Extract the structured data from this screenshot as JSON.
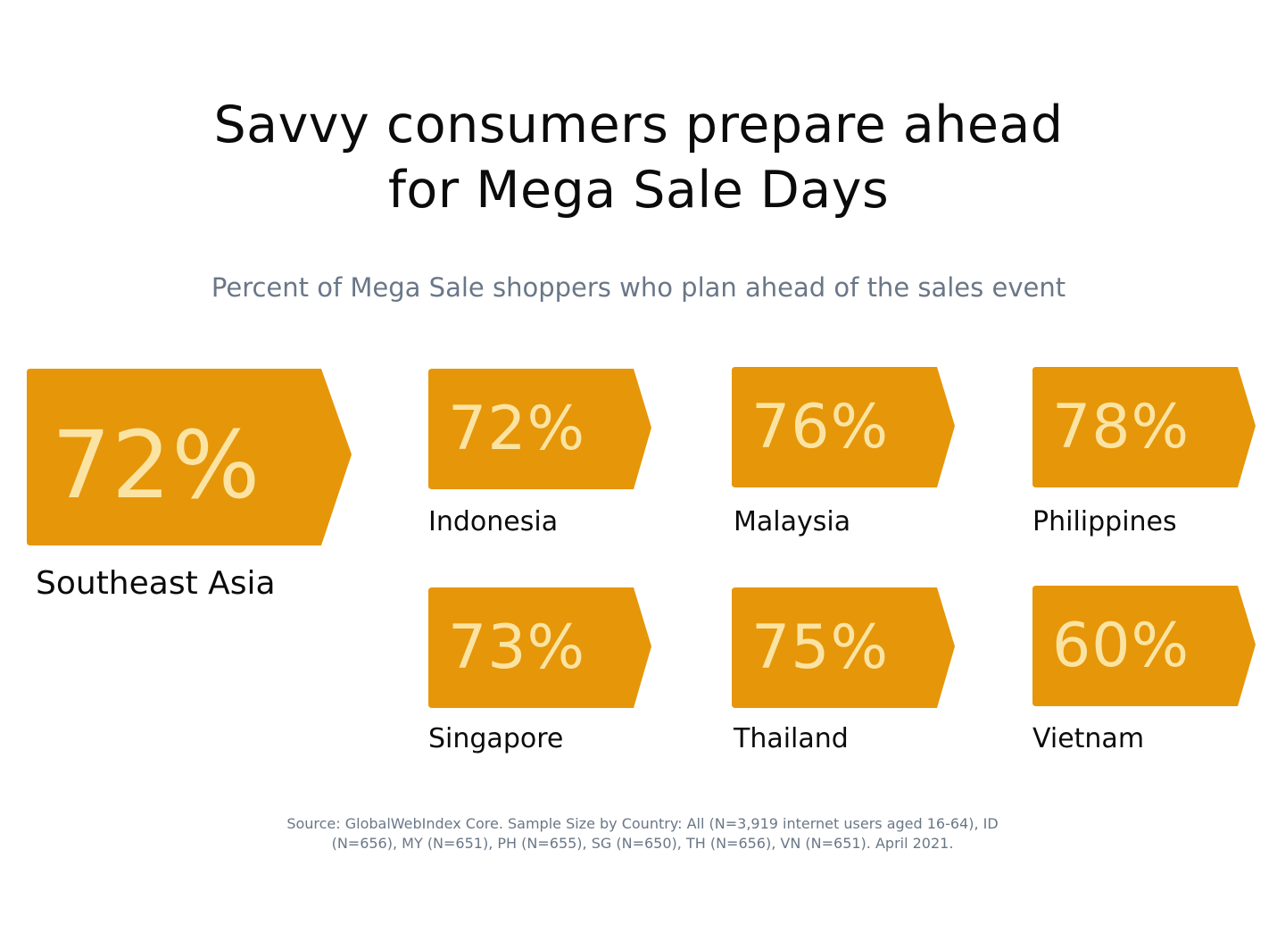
{
  "title": {
    "line1": "Savvy consumers prepare ahead",
    "line2": "for Mega Sale Days"
  },
  "subtitle": "Percent of Mega Sale shoppers who plan ahead of the sales event",
  "colors": {
    "tag_fill": "#e69609",
    "tag_text": "#fbe4a3",
    "label_text": "#0b0b0b",
    "muted_text": "#6a7787"
  },
  "chart_data": {
    "type": "table",
    "unit": "%",
    "items": [
      {
        "region": "Southeast Asia",
        "value": 72,
        "value_label": "72%"
      },
      {
        "region": "Indonesia",
        "value": 72,
        "value_label": "72%"
      },
      {
        "region": "Malaysia",
        "value": 76,
        "value_label": "76%"
      },
      {
        "region": "Philippines",
        "value": 78,
        "value_label": "78%"
      },
      {
        "region": "Singapore",
        "value": 73,
        "value_label": "73%"
      },
      {
        "region": "Thailand",
        "value": 75,
        "value_label": "75%"
      },
      {
        "region": "Vietnam",
        "value": 60,
        "value_label": "60%"
      }
    ]
  },
  "source": {
    "line1": "Source: GlobalWebIndex Core. Sample Size by Country: All (N=3,919 internet users aged 16-64), ID",
    "line2": "(N=656), MY (N=651), PH (N=655), SG (N=650), TH (N=656), VN (N=651). April 2021."
  }
}
